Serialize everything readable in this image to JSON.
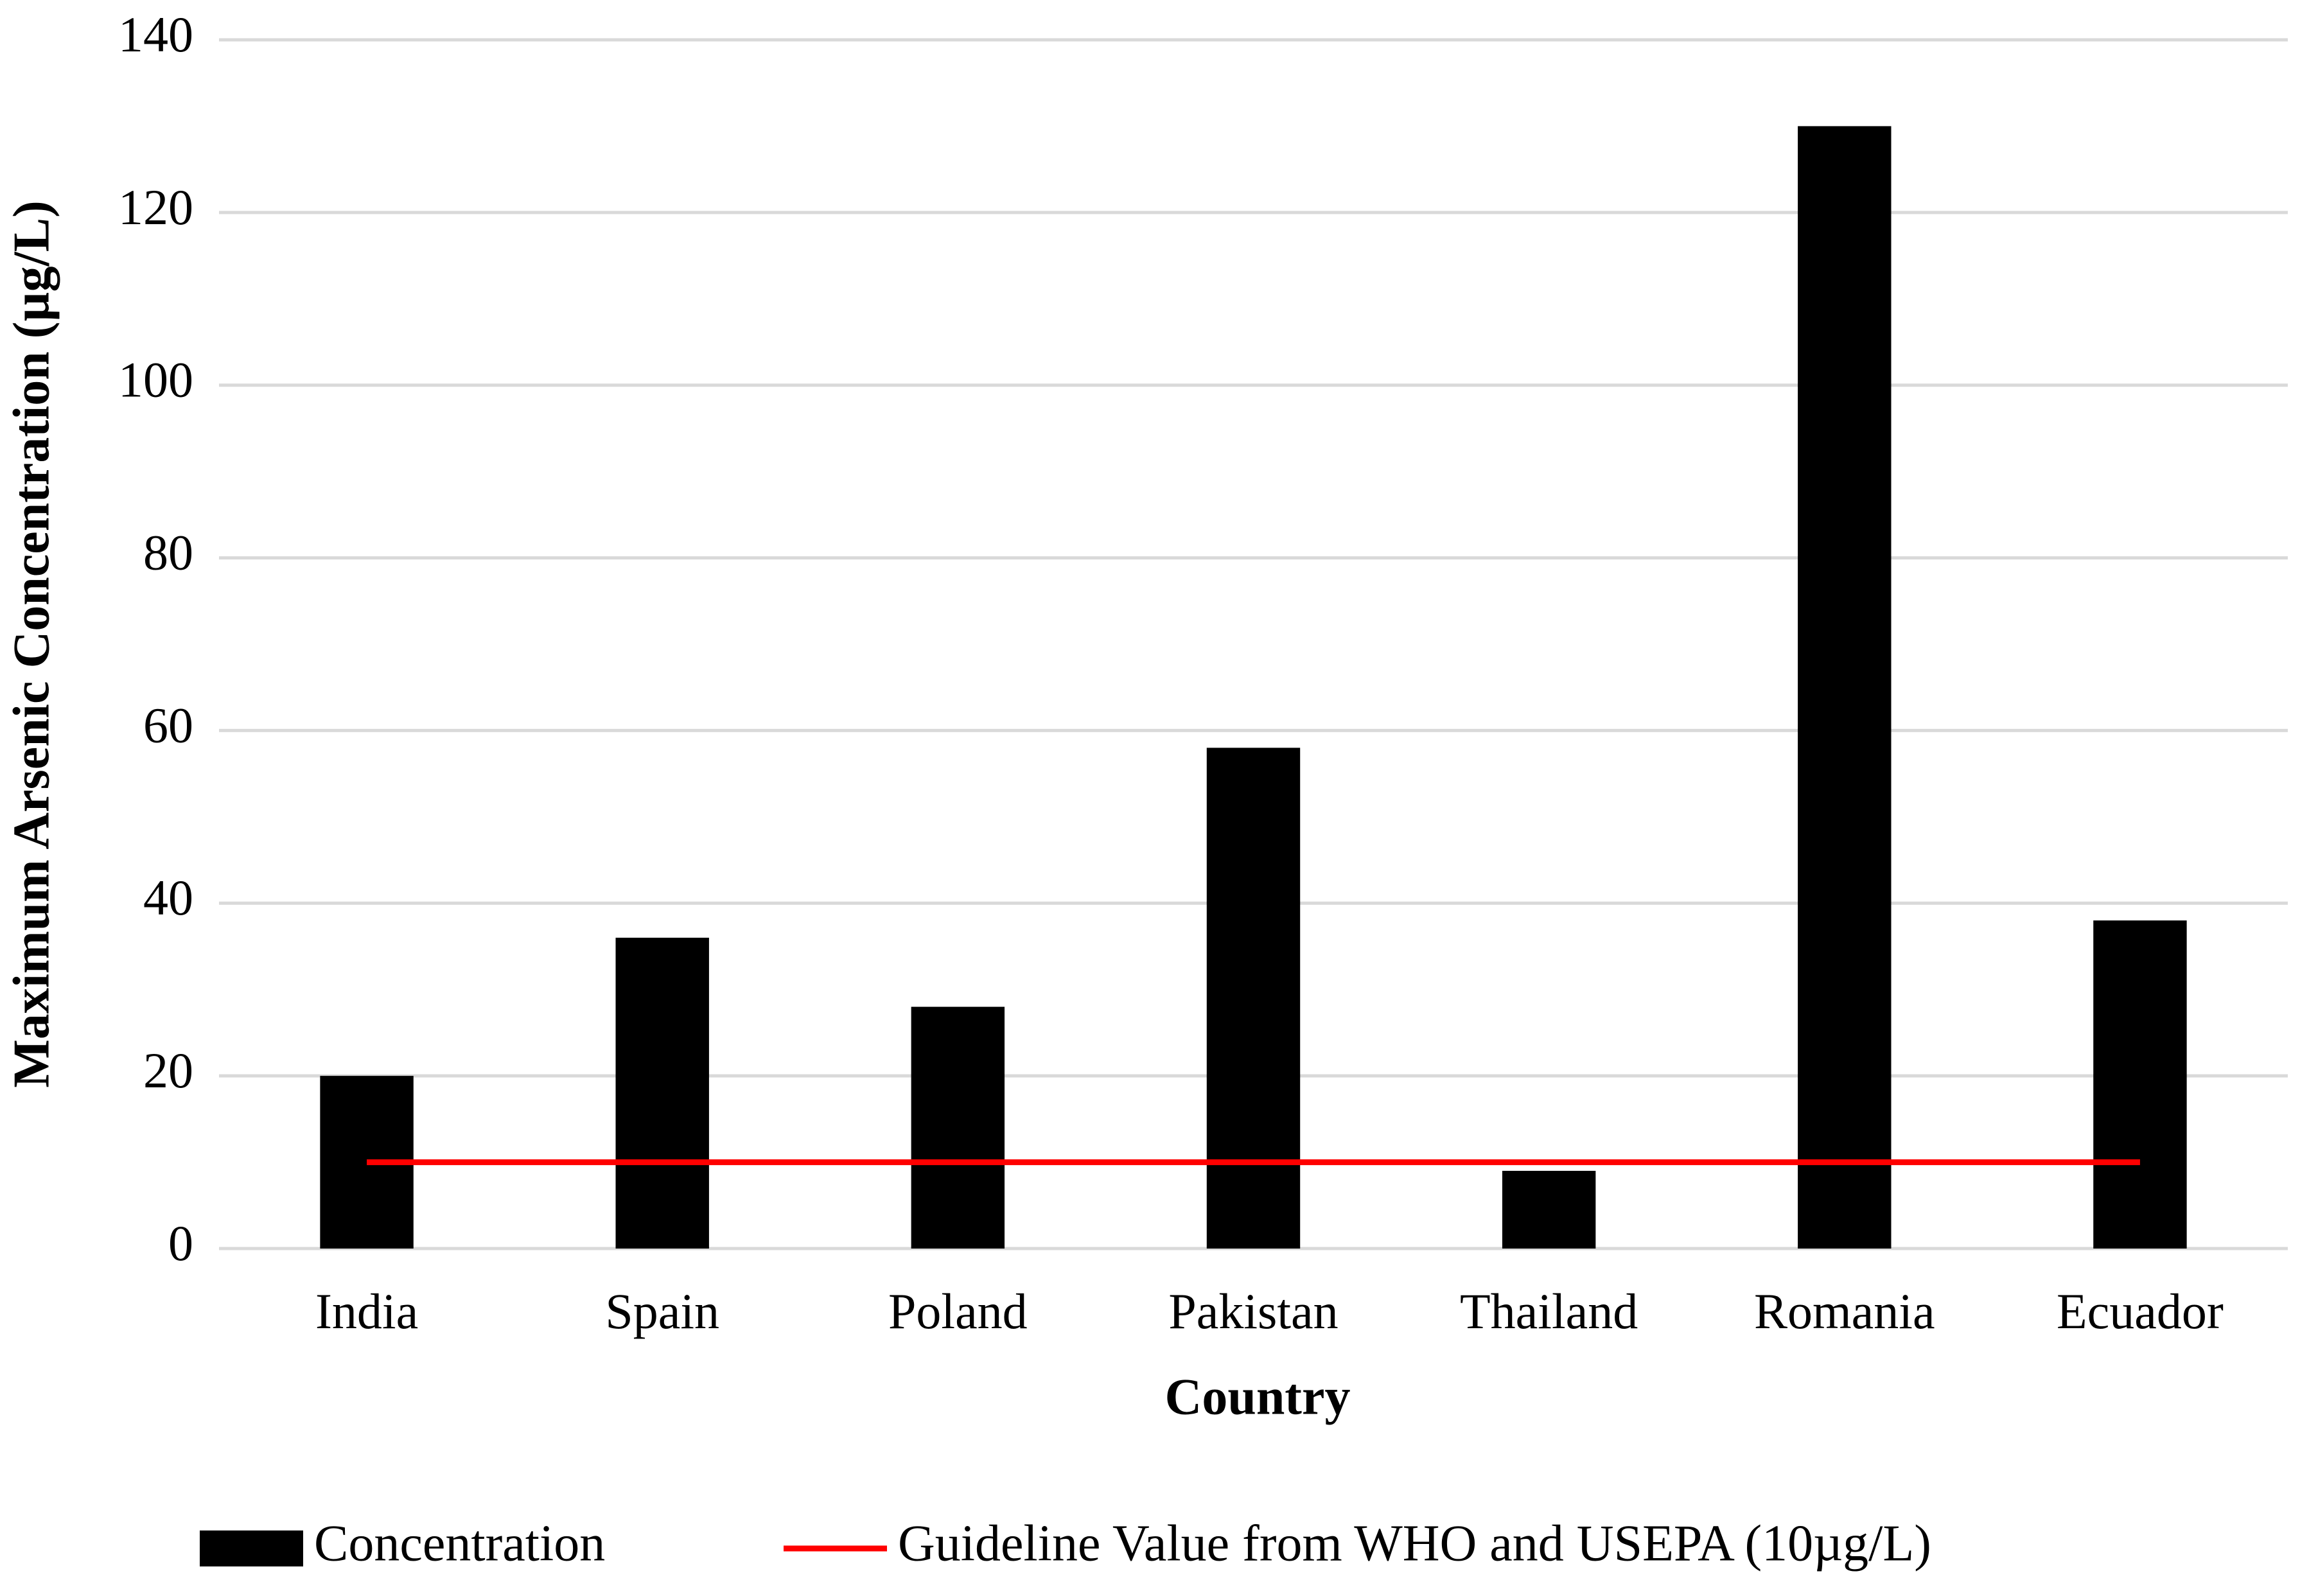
{
  "chart_data": {
    "type": "bar",
    "x_label": "Country",
    "y_label": "Maximum Arsenic Concentration (µg/L)",
    "categories": [
      "India",
      "Spain",
      "Poland",
      "Pakistan",
      "Thailand",
      "Romania",
      "Ecuador"
    ],
    "series": [
      {
        "name": "Concentration",
        "type": "bar",
        "color": "#000000",
        "values": [
          20,
          36,
          28,
          58,
          9,
          130,
          38
        ]
      },
      {
        "name": "Guideline Value from WHO and USEPA (10µg/L)",
        "type": "line",
        "color": "#ff0000",
        "values": [
          10,
          10,
          10,
          10,
          10,
          10,
          10
        ]
      }
    ],
    "ylim": [
      0,
      140
    ],
    "yticks": [
      0,
      20,
      40,
      60,
      80,
      100,
      120,
      140
    ],
    "grid": true,
    "legend": "bottom"
  }
}
